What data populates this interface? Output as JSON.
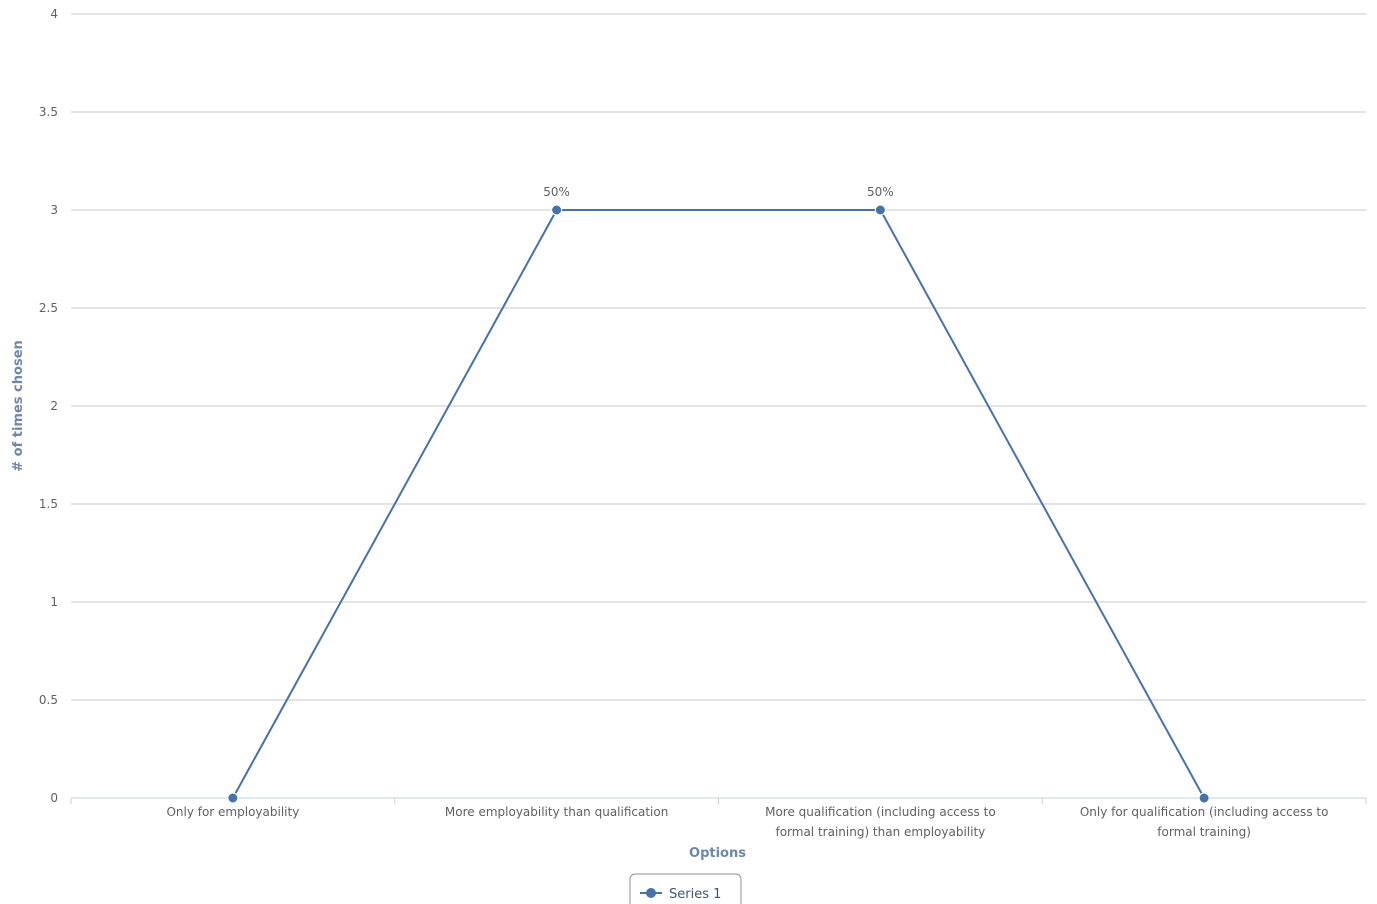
{
  "chart_data": {
    "type": "line",
    "categories": [
      [
        "Only for employability"
      ],
      [
        "More employability than qualification"
      ],
      [
        "More qualification (including access to",
        "formal training) than employability"
      ],
      [
        "Only for qualification (including access to",
        "formal training)"
      ]
    ],
    "series": [
      {
        "name": "Series 1",
        "values": [
          0,
          3,
          3,
          0
        ],
        "data_labels": [
          "",
          "50%",
          "50%",
          ""
        ],
        "color": "#4572a7"
      }
    ],
    "xlabel": "Options",
    "ylabel": "# of times chosen",
    "ylim": [
      0,
      4
    ],
    "yticks": [
      "0",
      "0.5",
      "1",
      "1.5",
      "2",
      "2.5",
      "3",
      "3.5",
      "4"
    ],
    "grid": true,
    "legend_position": "bottom-center"
  }
}
